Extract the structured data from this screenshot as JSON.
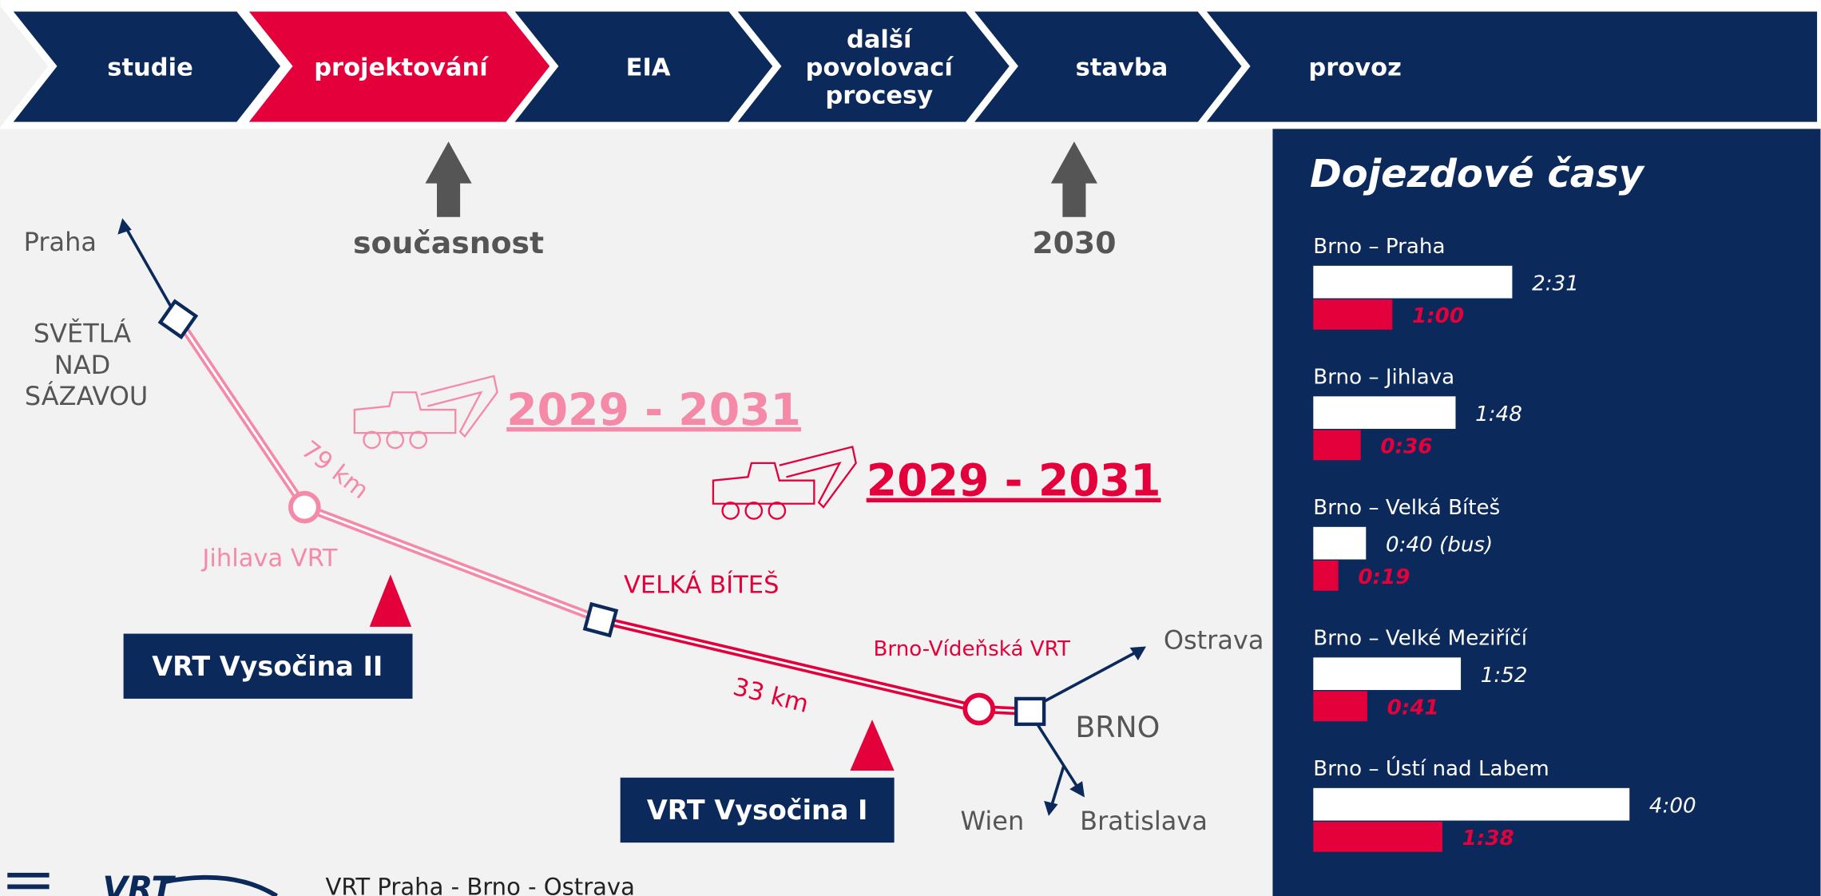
{
  "steps": [
    [
      "studie"
    ],
    [
      "projektování"
    ],
    [
      "EIA"
    ],
    [
      "další",
      "povolovací",
      "procesy"
    ],
    [
      "stavba"
    ],
    [
      "provoz"
    ]
  ],
  "markers": [
    "současnost",
    "2030"
  ],
  "map": {
    "praha": "Praha",
    "svetla": [
      "SVĚTLÁ",
      "NAD",
      "SÁZAVOU"
    ],
    "km79": "79 km",
    "jihlava": "Jihlava VRT",
    "bites": "VELKÁ BÍTEŠ",
    "brno_videnska": "Brno-Vídeňská VRT",
    "km33": "33 km",
    "ostrava": "Ostrava",
    "brno": "BRNO",
    "wien": "Wien",
    "bratislava": "Bratislava",
    "vysocina2": "VRT Vysočina II",
    "vysocina1": "VRT Vysočina I",
    "date2": "2029 - 2031",
    "date1": "2029 - 2031"
  },
  "footer": "VRT Praha - Brno - Ostrava",
  "chart_data": {
    "type": "bar",
    "title": "Dojezdové časy",
    "categories": [
      "Brno – Praha",
      "Brno – Jihlava",
      "Brno – Velká Bíteš",
      "Brno – Velké Meziříčí",
      "Brno – Ústí nad Labem"
    ],
    "series": [
      {
        "color": "#ffffff",
        "values": [
          151,
          108,
          40,
          112,
          240
        ],
        "value_labels": [
          "2:31",
          "1:48",
          "0:40 (bus)",
          "1:52",
          "4:00"
        ]
      },
      {
        "color": "#e4003b",
        "values": [
          60,
          36,
          19,
          41,
          98
        ],
        "value_labels": [
          "1:00",
          "0:36",
          "0:19",
          "0:41",
          "1:38"
        ]
      }
    ]
  }
}
